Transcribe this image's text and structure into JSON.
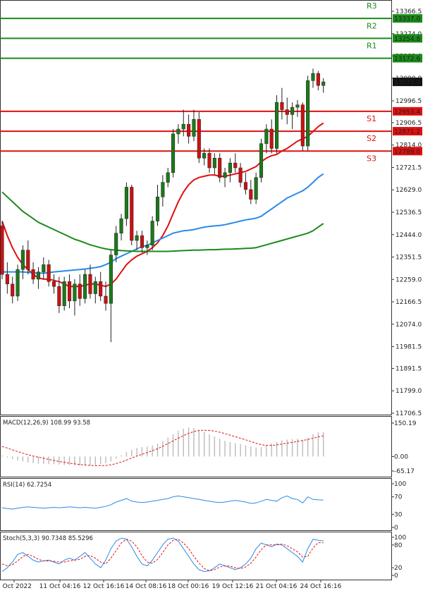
{
  "chart_data": [
    {
      "type": "candlestick",
      "ylim": [
        11706.5,
        13366.5
      ],
      "y_ticks": [
        "13366.5",
        "13274.0",
        "13182.0",
        "13090.0",
        "12996.5",
        "12906.5",
        "12814.0",
        "12721.5",
        "12629.0",
        "12536.5",
        "12444.0",
        "12351.5",
        "12259.0",
        "12166.5",
        "12074.0",
        "11981.5",
        "11891.5",
        "11799.0",
        "11706.5"
      ],
      "x_ticks": [
        "7 Oct 2022",
        "11 Oct 04:16",
        "12 Oct 16:16",
        "14 Oct 08:16",
        "18 Oct 00:16",
        "19 Oct 12:16",
        "21 Oct 04:16",
        "24 Oct 16:16"
      ],
      "current_price": "13075.0",
      "levels": [
        {
          "name": "R3",
          "value": 13337.0,
          "value_label": "13337.0",
          "color": "#1a8a1a"
        },
        {
          "name": "R2",
          "value": 13254.8,
          "value_label": "13254.8",
          "color": "#1a8a1a"
        },
        {
          "name": "R1",
          "value": 13172.6,
          "value_label": "13172.6",
          "color": "#1a8a1a"
        },
        {
          "name": "S1",
          "value": 12953.4,
          "value_label": "12953.4",
          "color": "#dd1111"
        },
        {
          "name": "S2",
          "value": 12871.2,
          "value_label": "12871.2",
          "color": "#dd1111"
        },
        {
          "name": "S3",
          "value": 12789.0,
          "value_label": "12789.0",
          "color": "#dd1111"
        }
      ],
      "candles": [
        [
          12480,
          12500,
          12260,
          12280
        ],
        [
          12280,
          12330,
          12200,
          12240
        ],
        [
          12240,
          12270,
          12160,
          12190
        ],
        [
          12190,
          12320,
          12170,
          12300
        ],
        [
          12300,
          12400,
          12260,
          12380
        ],
        [
          12380,
          12420,
          12280,
          12300
        ],
        [
          12300,
          12330,
          12240,
          12260
        ],
        [
          12260,
          12310,
          12220,
          12290
        ],
        [
          12290,
          12350,
          12260,
          12320
        ],
        [
          12320,
          12340,
          12230,
          12250
        ],
        [
          12250,
          12280,
          12200,
          12230
        ],
        [
          12230,
          12270,
          12120,
          12150
        ],
        [
          12150,
          12270,
          12130,
          12250
        ],
        [
          12250,
          12280,
          12140,
          12170
        ],
        [
          12170,
          12260,
          12110,
          12240
        ],
        [
          12240,
          12280,
          12150,
          12180
        ],
        [
          12180,
          12300,
          12160,
          12280
        ],
        [
          12280,
          12320,
          12180,
          12200
        ],
        [
          12200,
          12270,
          12160,
          12250
        ],
        [
          12250,
          12290,
          12170,
          12190
        ],
        [
          12190,
          12250,
          12130,
          12160
        ],
        [
          12160,
          12380,
          12000,
          12360
        ],
        [
          12360,
          12480,
          12330,
          12450
        ],
        [
          12450,
          12530,
          12420,
          12510
        ],
        [
          12510,
          12660,
          12480,
          12640
        ],
        [
          12640,
          12650,
          12400,
          12420
        ],
        [
          12420,
          12460,
          12380,
          12440
        ],
        [
          12440,
          12460,
          12370,
          12390
        ],
        [
          12390,
          12420,
          12360,
          12400
        ],
        [
          12400,
          12520,
          12380,
          12500
        ],
        [
          12500,
          12650,
          12480,
          12600
        ],
        [
          12600,
          12690,
          12560,
          12660
        ],
        [
          12660,
          12720,
          12640,
          12700
        ],
        [
          12700,
          12880,
          12680,
          12860
        ],
        [
          12860,
          12900,
          12820,
          12880
        ],
        [
          12880,
          12960,
          12850,
          12900
        ],
        [
          12900,
          12940,
          12820,
          12850
        ],
        [
          12850,
          12960,
          12830,
          12920
        ],
        [
          12920,
          12950,
          12740,
          12760
        ],
        [
          12760,
          12800,
          12730,
          12780
        ],
        [
          12780,
          12800,
          12700,
          12720
        ],
        [
          12720,
          12780,
          12690,
          12760
        ],
        [
          12760,
          12780,
          12660,
          12680
        ],
        [
          12680,
          12720,
          12640,
          12700
        ],
        [
          12700,
          12760,
          12660,
          12740
        ],
        [
          12740,
          12780,
          12700,
          12720
        ],
        [
          12720,
          12740,
          12640,
          12660
        ],
        [
          12660,
          12700,
          12610,
          12630
        ],
        [
          12630,
          12670,
          12570,
          12590
        ],
        [
          12590,
          12700,
          12570,
          12680
        ],
        [
          12680,
          12840,
          12660,
          12820
        ],
        [
          12820,
          12900,
          12780,
          12880
        ],
        [
          12880,
          12920,
          12780,
          12800
        ],
        [
          12800,
          13020,
          12780,
          12990
        ],
        [
          12990,
          13050,
          12920,
          12960
        ],
        [
          12960,
          13010,
          12900,
          12940
        ],
        [
          12940,
          12990,
          12880,
          12970
        ],
        [
          12970,
          13000,
          12930,
          12980
        ],
        [
          12980,
          12990,
          12790,
          12810
        ],
        [
          12810,
          13100,
          12790,
          13080
        ],
        [
          13080,
          13130,
          13050,
          13110
        ],
        [
          13110,
          13120,
          13040,
          13060
        ],
        [
          13060,
          13090,
          13030,
          13075
        ]
      ],
      "series": [
        {
          "name": "",
          "color": "#e01010",
          "values": [
            12500,
            12440,
            12390,
            12350,
            12320,
            12300,
            12280,
            12265,
            12260,
            12260,
            12255,
            12250,
            12240,
            12230,
            12230,
            12230,
            12235,
            12240,
            12240,
            12235,
            12230,
            12240,
            12260,
            12290,
            12320,
            12340,
            12355,
            12365,
            12375,
            12390,
            12410,
            12440,
            12480,
            12530,
            12580,
            12620,
            12650,
            12670,
            12680,
            12685,
            12690,
            12690,
            12685,
            12685,
            12690,
            12695,
            12700,
            12705,
            12715,
            12725,
            12745,
            12760,
            12770,
            12775,
            12790,
            12800,
            12815,
            12830,
            12840,
            12850,
            12870,
            12890,
            12905
          ]
        },
        {
          "name": "",
          "color": "#2a8ae8",
          "values": [
            12290,
            12290,
            12290,
            12290,
            12290,
            12288,
            12286,
            12285,
            12285,
            12287,
            12290,
            12292,
            12294,
            12296,
            12298,
            12300,
            12302,
            12305,
            12308,
            12312,
            12320,
            12330,
            12345,
            12355,
            12365,
            12375,
            12385,
            12395,
            12400,
            12410,
            12420,
            12430,
            12440,
            12450,
            12455,
            12460,
            12462,
            12465,
            12470,
            12475,
            12478,
            12480,
            12482,
            12485,
            12490,
            12495,
            12500,
            12505,
            12508,
            12512,
            12520,
            12535,
            12550,
            12565,
            12580,
            12595,
            12605,
            12615,
            12625,
            12640,
            12660,
            12680,
            12695
          ]
        },
        {
          "name": "",
          "color": "#1a8a1a",
          "values": [
            12620,
            12600,
            12580,
            12560,
            12540,
            12525,
            12510,
            12495,
            12485,
            12475,
            12465,
            12455,
            12445,
            12435,
            12425,
            12418,
            12410,
            12402,
            12396,
            12390,
            12385,
            12382,
            12380,
            12378,
            12377,
            12376,
            12375,
            12375,
            12375,
            12375,
            12375,
            12375,
            12375,
            12376,
            12377,
            12378,
            12379,
            12380,
            12380,
            12381,
            12382,
            12382,
            12383,
            12384,
            12384,
            12385,
            12386,
            12387,
            12388,
            12390,
            12396,
            12402,
            12408,
            12414,
            12420,
            12426,
            12432,
            12438,
            12444,
            12450,
            12460,
            12475,
            12490
          ]
        }
      ]
    },
    {
      "type": "bar",
      "title": "MACD(12,26,9) 108.99 93.58",
      "y_ticks": [
        "150.19",
        "0.00",
        "-65.17"
      ],
      "ylim": [
        -65.17,
        150.19
      ],
      "series": [
        {
          "name": "",
          "color": "#bbbbbb",
          "values": [
            5,
            -5,
            -12,
            -18,
            -22,
            -26,
            -30,
            -32,
            -33,
            -34,
            -35,
            -36,
            -38,
            -39,
            -40,
            -41,
            -41,
            -40,
            -38,
            -35,
            -30,
            -22,
            -10,
            5,
            20,
            30,
            38,
            42,
            45,
            50,
            58,
            70,
            85,
            100,
            115,
            125,
            130,
            128,
            120,
            110,
            100,
            90,
            80,
            70,
            65,
            60,
            55,
            50,
            45,
            40,
            42,
            50,
            58,
            66,
            72,
            76,
            78,
            80,
            75,
            85,
            100,
            108,
            109
          ]
        },
        {
          "name": "",
          "color": "#e01010",
          "values": [
            45,
            38,
            30,
            22,
            15,
            8,
            2,
            -3,
            -8,
            -13,
            -18,
            -22,
            -26,
            -30,
            -33,
            -36,
            -38,
            -40,
            -41,
            -41,
            -40,
            -37,
            -32,
            -25,
            -16,
            -7,
            2,
            10,
            18,
            26,
            35,
            46,
            58,
            70,
            82,
            94,
            104,
            112,
            117,
            118,
            117,
            114,
            109,
            103,
            96,
            89,
            82,
            75,
            67,
            60,
            53,
            50,
            50,
            52,
            56,
            60,
            64,
            68,
            72,
            76,
            82,
            88,
            93
          ]
        }
      ]
    },
    {
      "type": "line",
      "title": "RSI(14) 62.7254",
      "y_ticks": [
        "100",
        "70",
        "30",
        "0"
      ],
      "ylim": [
        0,
        100
      ],
      "series": [
        {
          "name": "",
          "color": "#2a8ae8",
          "values": [
            45,
            43,
            42,
            44,
            46,
            47,
            46,
            45,
            44,
            45,
            46,
            45,
            46,
            47,
            46,
            45,
            46,
            45,
            44,
            46,
            48,
            52,
            58,
            62,
            66,
            60,
            58,
            57,
            58,
            60,
            62,
            64,
            66,
            70,
            72,
            70,
            68,
            66,
            64,
            62,
            60,
            58,
            57,
            58,
            60,
            62,
            60,
            58,
            55,
            56,
            60,
            64,
            62,
            60,
            68,
            72,
            66,
            64,
            56,
            70,
            64,
            63,
            62.7
          ]
        }
      ]
    },
    {
      "type": "line",
      "title": "Stoch(5,3,3) 90.7348 85.5296",
      "y_ticks": [
        "100",
        "80",
        "20",
        "0"
      ],
      "ylim": [
        0,
        100
      ],
      "series": [
        {
          "name": "",
          "color": "#2a8ae8",
          "values": [
            10,
            20,
            35,
            55,
            60,
            50,
            40,
            35,
            38,
            40,
            35,
            30,
            40,
            45,
            40,
            50,
            60,
            45,
            30,
            20,
            40,
            70,
            90,
            98,
            95,
            75,
            50,
            30,
            25,
            40,
            60,
            80,
            95,
            98,
            90,
            70,
            50,
            30,
            15,
            10,
            12,
            20,
            30,
            25,
            20,
            15,
            20,
            30,
            45,
            70,
            85,
            80,
            75,
            82,
            80,
            70,
            60,
            50,
            35,
            70,
            95,
            92,
            90.7
          ]
        },
        {
          "name": "",
          "color": "#e01010",
          "values": [
            30,
            25,
            28,
            38,
            50,
            55,
            50,
            42,
            38,
            38,
            37,
            35,
            35,
            38,
            40,
            42,
            50,
            52,
            45,
            35,
            30,
            45,
            65,
            85,
            95,
            90,
            75,
            52,
            35,
            32,
            42,
            60,
            80,
            92,
            95,
            85,
            70,
            50,
            32,
            18,
            12,
            15,
            22,
            25,
            24,
            20,
            18,
            22,
            32,
            48,
            68,
            80,
            80,
            80,
            82,
            78,
            70,
            62,
            48,
            50,
            72,
            86,
            85.5
          ]
        }
      ]
    }
  ]
}
